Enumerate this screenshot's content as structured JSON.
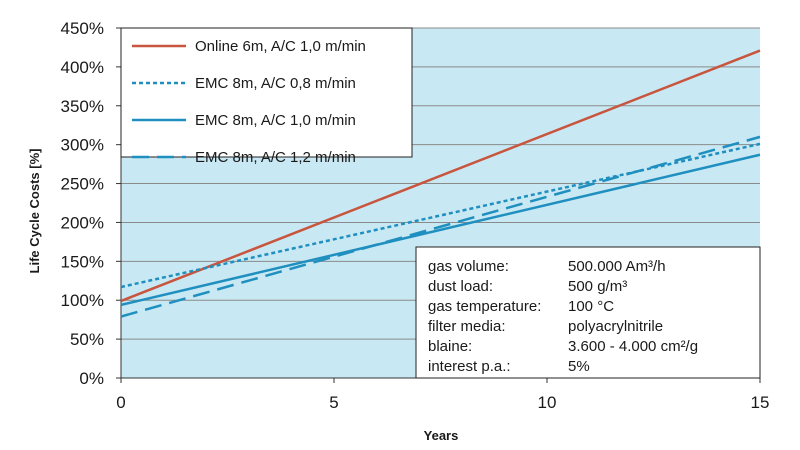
{
  "chart_data": {
    "type": "line",
    "title": "",
    "xlabel": "Years",
    "ylabel": "Life Cycle Costs [%]",
    "xlim": [
      0,
      15
    ],
    "ylim": [
      0,
      450
    ],
    "x_ticks": [
      0,
      5,
      10,
      15
    ],
    "x_tick_labels": [
      "0",
      "5",
      "10",
      "15"
    ],
    "y_ticks": [
      0,
      50,
      100,
      150,
      200,
      250,
      300,
      350,
      400,
      450
    ],
    "y_tick_labels": [
      "0%",
      "50%",
      "100%",
      "150%",
      "200%",
      "250%",
      "300%",
      "350%",
      "400%",
      "450%"
    ],
    "grid": "horizontal",
    "legend_position": "top-left",
    "series": [
      {
        "name": "Online 6m, A/C 1,0 m/min",
        "x": [
          0,
          15
        ],
        "y": [
          99,
          421
        ],
        "color": "#c8553d",
        "style": "solid"
      },
      {
        "name": "EMC 8m, A/C 0,8 m/min",
        "x": [
          0,
          15
        ],
        "y": [
          117,
          301
        ],
        "color": "#1f8fbf",
        "style": "dotted"
      },
      {
        "name": "EMC 8m, A/C 1,0 m/min",
        "x": [
          0,
          15
        ],
        "y": [
          94,
          287
        ],
        "color": "#1f8fbf",
        "style": "solid"
      },
      {
        "name": "EMC 8m, A/C 1,2 m/min",
        "x": [
          0,
          15
        ],
        "y": [
          79,
          310
        ],
        "color": "#1f8fbf",
        "style": "dashed"
      }
    ],
    "annotations": [
      {
        "label": "gas volume:",
        "value": "500.000 Am³/h"
      },
      {
        "label": "dust load:",
        "value": "500 g/m³"
      },
      {
        "label": "gas temperature:",
        "value": "100 °C"
      },
      {
        "label": "filter media:",
        "value": "polyacrylnitrile"
      },
      {
        "label": "blaine:",
        "value": "3.600 - 4.000 cm²/g"
      },
      {
        "label": "interest p.a.:",
        "value": "5%"
      }
    ]
  },
  "colors": {
    "plot_background": "#c8e8f4",
    "gridline": "#8a8a8a",
    "axis": "#333333"
  }
}
